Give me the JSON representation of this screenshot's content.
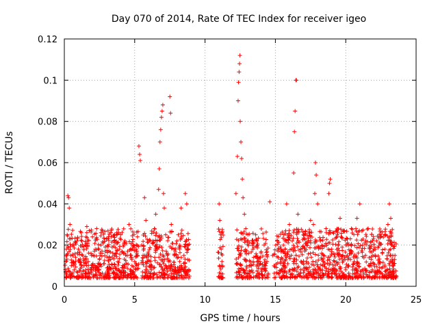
{
  "chart_data": {
    "type": "scatter",
    "title": "Day 070 of 2014, Rate Of TEC Index for receiver igeo",
    "xlabel": "GPS time / hours",
    "ylabel": "ROTI / TECUs",
    "xlim": [
      0,
      25
    ],
    "ylim": [
      0,
      0.12
    ],
    "xticks": [
      0,
      5,
      10,
      15,
      20,
      25
    ],
    "xtick_labels": [
      "0",
      "5",
      "10",
      "15",
      "20",
      "25"
    ],
    "yticks": [
      0,
      0.02,
      0.04,
      0.06,
      0.08,
      0.1,
      0.12
    ],
    "ytick_labels": [
      "0",
      "0.02",
      "0.04",
      "0.06",
      "0.08",
      "0.1",
      "0.12"
    ],
    "grid": true,
    "marker": "+",
    "color": "#ff0000",
    "series": [
      {
        "name": "ROTI",
        "points": [
          [
            0.1,
            0.012
          ],
          [
            0.15,
            0.018
          ],
          [
            0.2,
            0.025
          ],
          [
            0.25,
            0.044
          ],
          [
            0.3,
            0.043
          ],
          [
            0.35,
            0.038
          ],
          [
            0.4,
            0.03
          ],
          [
            0.45,
            0.015
          ],
          [
            0.5,
            0.01
          ],
          [
            0.6,
            0.02
          ],
          [
            0.7,
            0.008
          ],
          [
            0.8,
            0.014
          ],
          [
            0.9,
            0.022
          ],
          [
            1.0,
            0.018
          ],
          [
            1.1,
            0.012
          ],
          [
            1.2,
            0.026
          ],
          [
            1.3,
            0.015
          ],
          [
            1.4,
            0.01
          ],
          [
            1.5,
            0.02
          ],
          [
            1.6,
            0.029
          ],
          [
            1.7,
            0.012
          ],
          [
            1.8,
            0.006
          ],
          [
            1.9,
            0.016
          ],
          [
            2.0,
            0.024
          ],
          [
            2.1,
            0.01
          ],
          [
            2.2,
            0.018
          ],
          [
            2.3,
            0.028
          ],
          [
            2.4,
            0.008
          ],
          [
            2.5,
            0.013
          ],
          [
            2.6,
            0.02
          ],
          [
            2.7,
            0.027
          ],
          [
            2.8,
            0.011
          ],
          [
            2.9,
            0.017
          ],
          [
            3.0,
            0.023
          ],
          [
            3.1,
            0.009
          ],
          [
            3.2,
            0.014
          ],
          [
            3.3,
            0.026
          ],
          [
            3.4,
            0.019
          ],
          [
            3.5,
            0.007
          ],
          [
            3.6,
            0.015
          ],
          [
            3.7,
            0.021
          ],
          [
            3.8,
            0.012
          ],
          [
            3.9,
            0.018
          ],
          [
            4.0,
            0.025
          ],
          [
            4.1,
            0.009
          ],
          [
            4.2,
            0.016
          ],
          [
            4.3,
            0.022
          ],
          [
            4.4,
            0.011
          ],
          [
            4.5,
            0.017
          ],
          [
            4.6,
            0.03
          ],
          [
            4.7,
            0.006
          ],
          [
            4.8,
            0.013
          ],
          [
            4.9,
            0.02
          ],
          [
            5.0,
            0.012
          ],
          [
            5.1,
            0.018
          ],
          [
            5.2,
            0.024
          ],
          [
            5.3,
            0.068
          ],
          [
            5.35,
            0.064
          ],
          [
            5.4,
            0.061
          ],
          [
            5.5,
            0.02
          ],
          [
            5.6,
            0.015
          ],
          [
            5.7,
            0.043
          ],
          [
            5.8,
            0.032
          ],
          [
            6.0,
            0.015
          ],
          [
            6.2,
            0.01
          ],
          [
            6.3,
            0.022
          ],
          [
            6.4,
            0.028
          ],
          [
            6.5,
            0.035
          ],
          [
            6.6,
            0.018
          ],
          [
            6.7,
            0.047
          ],
          [
            6.75,
            0.057
          ],
          [
            6.8,
            0.07
          ],
          [
            6.85,
            0.076
          ],
          [
            6.9,
            0.082
          ],
          [
            6.95,
            0.085
          ],
          [
            7.0,
            0.088
          ],
          [
            7.05,
            0.045
          ],
          [
            7.1,
            0.038
          ],
          [
            7.2,
            0.025
          ],
          [
            7.4,
            0.012
          ],
          [
            7.5,
            0.092
          ],
          [
            7.55,
            0.084
          ],
          [
            7.6,
            0.03
          ],
          [
            7.8,
            0.018
          ],
          [
            8.0,
            0.022
          ],
          [
            8.2,
            0.012
          ],
          [
            8.3,
            0.038
          ],
          [
            8.5,
            0.015
          ],
          [
            8.6,
            0.045
          ],
          [
            8.7,
            0.04
          ],
          [
            8.8,
            0.02
          ],
          [
            11.0,
            0.04
          ],
          [
            11.05,
            0.032
          ],
          [
            11.1,
            0.025
          ],
          [
            11.15,
            0.018
          ],
          [
            11.2,
            0.012
          ],
          [
            11.25,
            0.006
          ],
          [
            12.2,
            0.045
          ],
          [
            12.3,
            0.063
          ],
          [
            12.35,
            0.09
          ],
          [
            12.38,
            0.099
          ],
          [
            12.42,
            0.104
          ],
          [
            12.45,
            0.108
          ],
          [
            12.48,
            0.112
          ],
          [
            12.5,
            0.08
          ],
          [
            12.55,
            0.07
          ],
          [
            12.6,
            0.062
          ],
          [
            12.65,
            0.052
          ],
          [
            12.7,
            0.043
          ],
          [
            12.8,
            0.035
          ],
          [
            12.9,
            0.028
          ],
          [
            13.0,
            0.022
          ],
          [
            13.1,
            0.016
          ],
          [
            13.2,
            0.01
          ],
          [
            13.4,
            0.018
          ],
          [
            13.6,
            0.025
          ],
          [
            13.8,
            0.012
          ],
          [
            14.0,
            0.008
          ],
          [
            14.2,
            0.02
          ],
          [
            14.4,
            0.012
          ],
          [
            14.6,
            0.041
          ],
          [
            14.8,
            0.015
          ],
          [
            15.4,
            0.018
          ],
          [
            15.6,
            0.025
          ],
          [
            15.8,
            0.04
          ],
          [
            16.0,
            0.03
          ],
          [
            16.2,
            0.022
          ],
          [
            16.3,
            0.055
          ],
          [
            16.35,
            0.075
          ],
          [
            16.4,
            0.085
          ],
          [
            16.45,
            0.1
          ],
          [
            16.5,
            0.1
          ],
          [
            16.6,
            0.035
          ],
          [
            16.8,
            0.018
          ],
          [
            17.0,
            0.025
          ],
          [
            17.2,
            0.012
          ],
          [
            17.5,
            0.032
          ],
          [
            17.7,
            0.03
          ],
          [
            17.8,
            0.045
          ],
          [
            17.85,
            0.06
          ],
          [
            17.9,
            0.054
          ],
          [
            18.0,
            0.04
          ],
          [
            18.2,
            0.022
          ],
          [
            18.4,
            0.015
          ],
          [
            18.6,
            0.028
          ],
          [
            18.8,
            0.045
          ],
          [
            18.85,
            0.05
          ],
          [
            18.9,
            0.052
          ],
          [
            19.0,
            0.018
          ],
          [
            19.2,
            0.012
          ],
          [
            19.4,
            0.025
          ],
          [
            19.6,
            0.033
          ],
          [
            19.8,
            0.015
          ],
          [
            20.0,
            0.008
          ],
          [
            20.2,
            0.02
          ],
          [
            20.4,
            0.028
          ],
          [
            20.6,
            0.012
          ],
          [
            20.8,
            0.033
          ],
          [
            21.0,
            0.04
          ],
          [
            21.2,
            0.02
          ],
          [
            21.4,
            0.015
          ],
          [
            21.6,
            0.028
          ],
          [
            21.8,
            0.01
          ],
          [
            22.0,
            0.018
          ],
          [
            22.2,
            0.022
          ],
          [
            22.4,
            0.012
          ],
          [
            22.6,
            0.016
          ],
          [
            22.8,
            0.025
          ],
          [
            23.0,
            0.03
          ],
          [
            23.1,
            0.04
          ],
          [
            23.2,
            0.033
          ],
          [
            23.3,
            0.02
          ],
          [
            23.4,
            0.01
          ],
          [
            23.5,
            0.015
          ]
        ]
      }
    ]
  }
}
